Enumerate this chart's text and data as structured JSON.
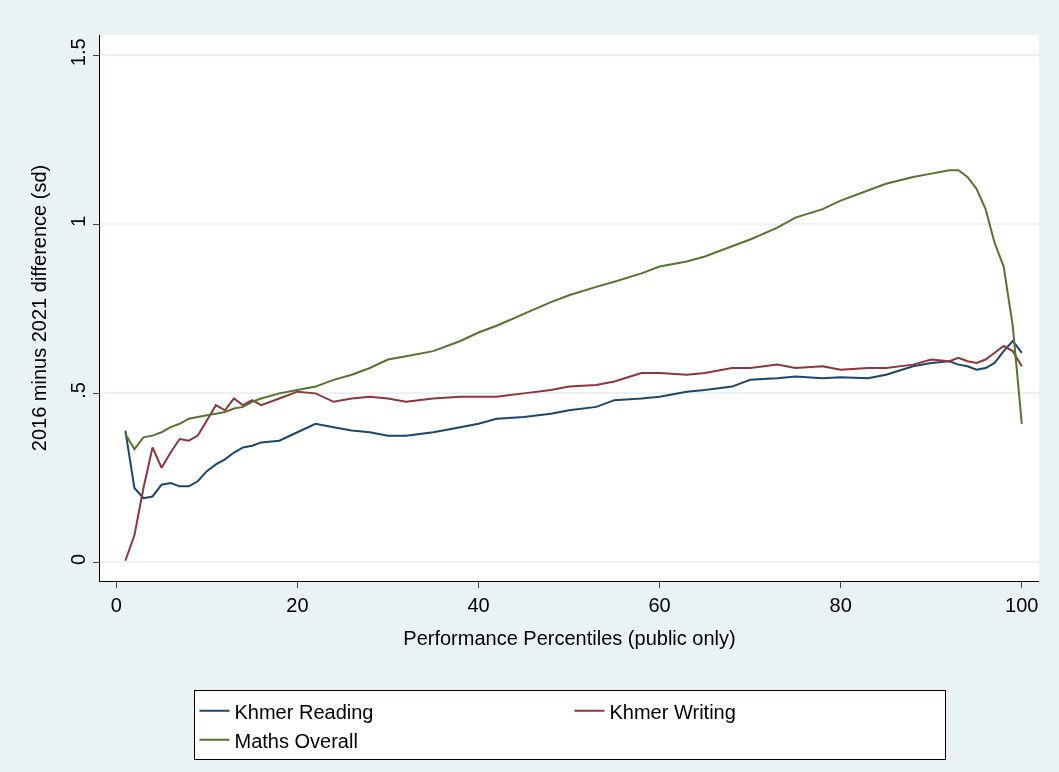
{
  "chart_data": {
    "type": "line",
    "xlabel": "Performance Percentiles (public only)",
    "ylabel": "2016 minus 2021 difference (sd)",
    "x": [
      1,
      2,
      3,
      4,
      5,
      6,
      7,
      8,
      9,
      10,
      11,
      12,
      13,
      14,
      15,
      16,
      18,
      20,
      22,
      24,
      26,
      28,
      30,
      32,
      35,
      38,
      40,
      42,
      45,
      48,
      50,
      53,
      55,
      58,
      60,
      63,
      65,
      68,
      70,
      73,
      75,
      78,
      80,
      83,
      85,
      88,
      90,
      92,
      93,
      94,
      95,
      96,
      97,
      98,
      99,
      100
    ],
    "series": [
      {
        "name": "Khmer Reading",
        "color": "#1a476f",
        "values": [
          0.39,
          0.22,
          0.19,
          0.195,
          0.23,
          0.235,
          0.225,
          0.225,
          0.24,
          0.27,
          0.29,
          0.305,
          0.325,
          0.34,
          0.345,
          0.355,
          0.36,
          0.385,
          0.41,
          0.4,
          0.39,
          0.385,
          0.375,
          0.375,
          0.385,
          0.4,
          0.41,
          0.425,
          0.43,
          0.44,
          0.45,
          0.46,
          0.48,
          0.485,
          0.49,
          0.505,
          0.51,
          0.52,
          0.54,
          0.545,
          0.55,
          0.545,
          0.548,
          0.545,
          0.555,
          0.58,
          0.59,
          0.595,
          0.585,
          0.58,
          0.57,
          0.575,
          0.59,
          0.625,
          0.655,
          0.62
        ]
      },
      {
        "name": "Khmer Writing",
        "color": "#90353b",
        "values": [
          0.005,
          0.08,
          0.22,
          0.34,
          0.28,
          0.325,
          0.365,
          0.36,
          0.375,
          0.42,
          0.465,
          0.45,
          0.485,
          0.465,
          0.48,
          0.465,
          0.485,
          0.505,
          0.5,
          0.475,
          0.485,
          0.49,
          0.485,
          0.475,
          0.485,
          0.49,
          0.49,
          0.49,
          0.5,
          0.51,
          0.52,
          0.525,
          0.535,
          0.56,
          0.56,
          0.555,
          0.56,
          0.575,
          0.575,
          0.585,
          0.575,
          0.58,
          0.57,
          0.575,
          0.575,
          0.585,
          0.6,
          0.595,
          0.605,
          0.595,
          0.59,
          0.6,
          0.62,
          0.64,
          0.625,
          0.58
        ]
      },
      {
        "name": "Maths Overall",
        "color": "#55752f",
        "values": [
          0.38,
          0.335,
          0.37,
          0.375,
          0.385,
          0.4,
          0.41,
          0.425,
          0.43,
          0.435,
          0.44,
          0.445,
          0.455,
          0.46,
          0.475,
          0.485,
          0.5,
          0.51,
          0.52,
          0.54,
          0.555,
          0.575,
          0.6,
          0.61,
          0.625,
          0.655,
          0.68,
          0.7,
          0.735,
          0.77,
          0.79,
          0.815,
          0.83,
          0.855,
          0.875,
          0.89,
          0.905,
          0.935,
          0.955,
          0.99,
          1.02,
          1.045,
          1.07,
          1.1,
          1.12,
          1.14,
          1.15,
          1.16,
          1.16,
          1.14,
          1.105,
          1.045,
          0.945,
          0.875,
          0.7,
          0.41
        ]
      }
    ],
    "xlim": [
      -1.8,
      101.9
    ],
    "xticks": [
      0,
      20,
      40,
      60,
      80,
      100
    ],
    "ylim": [
      -0.055,
      1.56
    ],
    "yticks": [
      0,
      {
        "value": 0.5,
        "label": ".5"
      },
      1,
      1.5
    ],
    "grid": "y",
    "legend": "bottom",
    "line_style": "solid",
    "marker": "none"
  }
}
